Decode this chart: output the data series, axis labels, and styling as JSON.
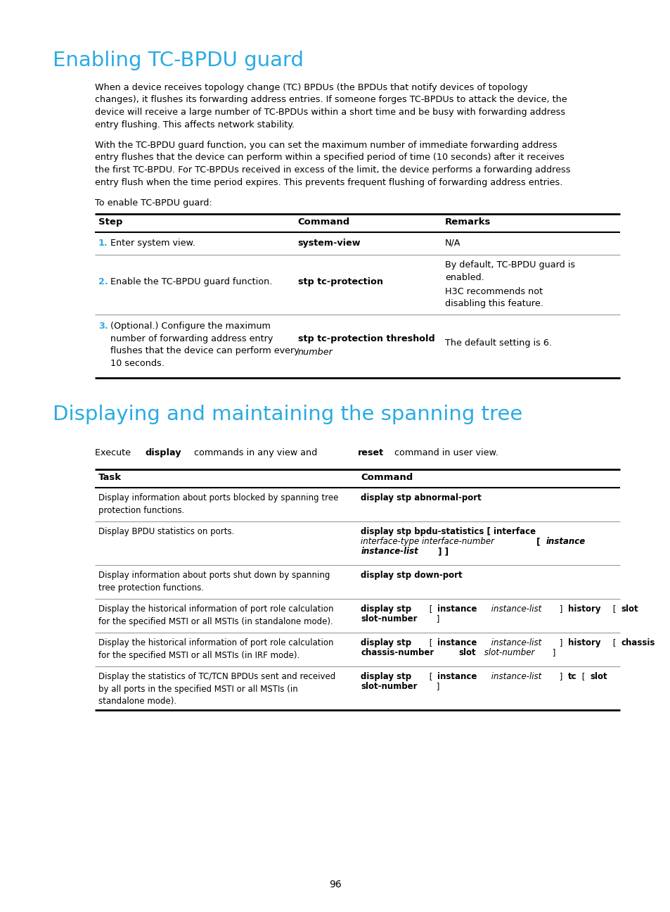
{
  "bg_color": "#ffffff",
  "text_color": "#000000",
  "cyan_color": "#29abe2",
  "title1": "Enabling TC-BPDU guard",
  "para1_lines": [
    "When a device receives topology change (TC) BPDUs (the BPDUs that notify devices of topology",
    "changes), it flushes its forwarding address entries. If someone forges TC-BPDUs to attack the device, the",
    "device will receive a large number of TC-BPDUs within a short time and be busy with forwarding address",
    "entry flushing. This affects network stability."
  ],
  "para2_lines": [
    "With the TC-BPDU guard function, you can set the maximum number of immediate forwarding address",
    "entry flushes that the device can perform within a specified period of time (10 seconds) after it receives",
    "the first TC-BPDU. For TC-BPDUs received in excess of the limit, the device performs a forwarding address",
    "entry flush when the time period expires. This prevents frequent flushing of forwarding address entries."
  ],
  "para3": "To enable TC-BPDU guard:",
  "title2": "Displaying and maintaining the spanning tree",
  "page_number": "96"
}
